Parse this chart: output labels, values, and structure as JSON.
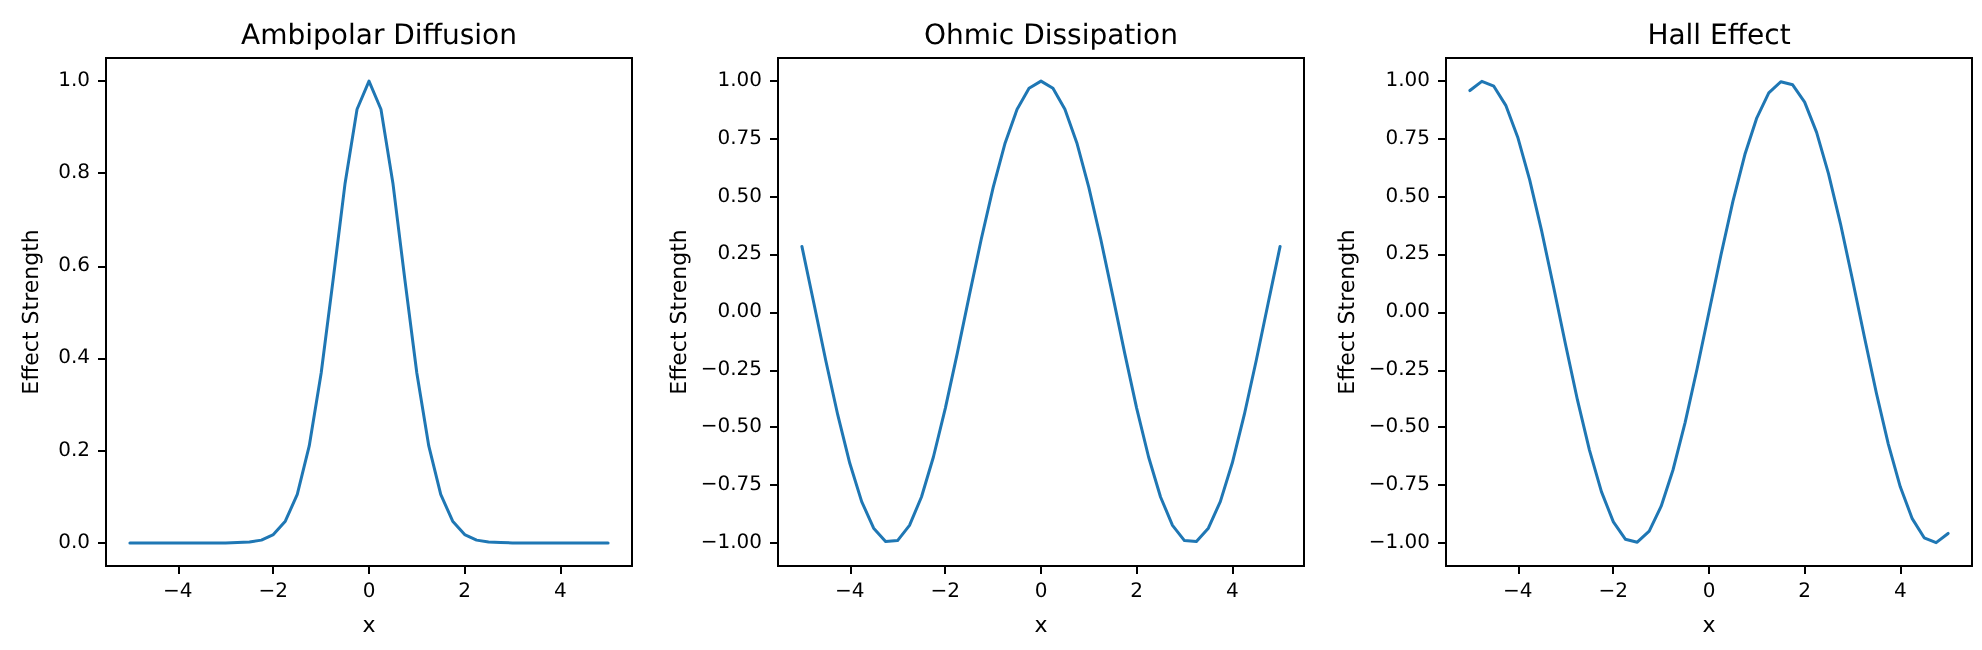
{
  "chart_data": [
    {
      "type": "line",
      "title": "Ambipolar Diffusion",
      "xlabel": "x",
      "ylabel": "Effect Strength",
      "xlim": [
        -5.5,
        5.5
      ],
      "xticks": [
        -4,
        -2,
        0,
        2,
        4
      ],
      "ylim": [
        -0.05,
        1.05
      ],
      "yticks": [
        {
          "value": 0,
          "label": "0.0"
        },
        {
          "value": 0.2,
          "label": "0.2"
        },
        {
          "value": 0.4,
          "label": "0.4"
        },
        {
          "value": 0.6,
          "label": "0.6"
        },
        {
          "value": 0.8,
          "label": "0.8"
        },
        {
          "value": 1,
          "label": "1.0"
        }
      ],
      "grid": false,
      "marker": "none",
      "line_style": "solid",
      "x": [
        -5,
        -4.75,
        -4.5,
        -4.25,
        -4,
        -3.75,
        -3.5,
        -3.25,
        -3,
        -2.75,
        -2.5,
        -2.25,
        -2,
        -1.75,
        -1.5,
        -1.25,
        -1,
        -0.75,
        -0.5,
        -0.25,
        0,
        0.25,
        0.5,
        0.75,
        1,
        1.25,
        1.5,
        1.75,
        2,
        2.25,
        2.5,
        2.75,
        3,
        3.25,
        3.5,
        3.75,
        4,
        4.25,
        4.5,
        4.75,
        5
      ],
      "series": [
        {
          "color": "#1f77b4",
          "values": [
            0,
            0,
            0,
            0,
            0,
            0,
            0,
            0,
            0,
            0.001,
            0.002,
            0.006,
            0.018,
            0.047,
            0.105,
            0.21,
            0.368,
            0.57,
            0.779,
            0.939,
            1,
            0.939,
            0.779,
            0.57,
            0.368,
            0.21,
            0.105,
            0.047,
            0.018,
            0.006,
            0.002,
            0.001,
            0,
            0,
            0,
            0,
            0,
            0,
            0,
            0,
            0
          ]
        }
      ]
    },
    {
      "type": "line",
      "title": "Ohmic Dissipation",
      "xlabel": "x",
      "ylabel": "Effect Strength",
      "xlim": [
        -5.5,
        5.5
      ],
      "xticks": [
        -4,
        -2,
        0,
        2,
        4
      ],
      "ylim": [
        -1.1,
        1.1
      ],
      "yticks": [
        {
          "value": -1,
          "label": "−1.00"
        },
        {
          "value": -0.75,
          "label": "−0.75"
        },
        {
          "value": -0.5,
          "label": "−0.50"
        },
        {
          "value": -0.25,
          "label": "−0.25"
        },
        {
          "value": 0,
          "label": "0.00"
        },
        {
          "value": 0.25,
          "label": "0.25"
        },
        {
          "value": 0.5,
          "label": "0.50"
        },
        {
          "value": 0.75,
          "label": "0.75"
        },
        {
          "value": 1,
          "label": "1.00"
        }
      ],
      "grid": false,
      "marker": "none",
      "line_style": "solid",
      "x": [
        -5,
        -4.75,
        -4.5,
        -4.25,
        -4,
        -3.75,
        -3.5,
        -3.25,
        -3,
        -2.75,
        -2.5,
        -2.25,
        -2,
        -1.75,
        -1.5,
        -1.25,
        -1,
        -0.75,
        -0.5,
        -0.25,
        0,
        0.25,
        0.5,
        0.75,
        1,
        1.25,
        1.5,
        1.75,
        2,
        2.25,
        2.5,
        2.75,
        3,
        3.25,
        3.5,
        3.75,
        4,
        4.25,
        4.5,
        4.75,
        5
      ],
      "series": [
        {
          "color": "#1f77b4",
          "values": [
            0.284,
            0.038,
            -0.211,
            -0.446,
            -0.654,
            -0.821,
            -0.936,
            -0.994,
            -0.99,
            -0.924,
            -0.801,
            -0.628,
            -0.416,
            -0.178,
            0.071,
            0.315,
            0.54,
            0.732,
            0.878,
            0.969,
            1,
            0.969,
            0.878,
            0.732,
            0.54,
            0.315,
            0.071,
            -0.178,
            -0.416,
            -0.628,
            -0.801,
            -0.924,
            -0.99,
            -0.994,
            -0.936,
            -0.821,
            -0.654,
            -0.446,
            -0.211,
            0.038,
            0.284
          ]
        }
      ]
    },
    {
      "type": "line",
      "title": "Hall Effect",
      "xlabel": "x",
      "ylabel": "Effect Strength",
      "xlim": [
        -5.5,
        5.5
      ],
      "xticks": [
        -4,
        -2,
        0,
        2,
        4
      ],
      "ylim": [
        -1.1,
        1.1
      ],
      "yticks": [
        {
          "value": -1,
          "label": "−1.00"
        },
        {
          "value": -0.75,
          "label": "−0.75"
        },
        {
          "value": -0.5,
          "label": "−0.50"
        },
        {
          "value": -0.25,
          "label": "−0.25"
        },
        {
          "value": 0,
          "label": "0.00"
        },
        {
          "value": 0.25,
          "label": "0.25"
        },
        {
          "value": 0.5,
          "label": "0.50"
        },
        {
          "value": 0.75,
          "label": "0.75"
        },
        {
          "value": 1,
          "label": "1.00"
        }
      ],
      "grid": false,
      "marker": "none",
      "line_style": "solid",
      "x": [
        -5,
        -4.75,
        -4.5,
        -4.25,
        -4,
        -3.75,
        -3.5,
        -3.25,
        -3,
        -2.75,
        -2.5,
        -2.25,
        -2,
        -1.75,
        -1.5,
        -1.25,
        -1,
        -0.75,
        -0.5,
        -0.25,
        0,
        0.25,
        0.5,
        0.75,
        1,
        1.25,
        1.5,
        1.75,
        2,
        2.25,
        2.5,
        2.75,
        3,
        3.25,
        3.5,
        3.75,
        4,
        4.25,
        4.5,
        4.75,
        5
      ],
      "series": [
        {
          "color": "#1f77b4",
          "values": [
            0.959,
            0.999,
            0.978,
            0.895,
            0.757,
            0.572,
            0.351,
            0.108,
            -0.141,
            -0.382,
            -0.598,
            -0.778,
            -0.909,
            -0.984,
            -0.997,
            -0.949,
            -0.841,
            -0.682,
            -0.479,
            -0.247,
            0,
            0.247,
            0.479,
            0.682,
            0.841,
            0.949,
            0.997,
            0.984,
            0.909,
            0.778,
            0.598,
            0.382,
            0.141,
            -0.108,
            -0.351,
            -0.572,
            -0.757,
            -0.895,
            -0.978,
            -0.999,
            -0.959
          ]
        }
      ]
    }
  ]
}
